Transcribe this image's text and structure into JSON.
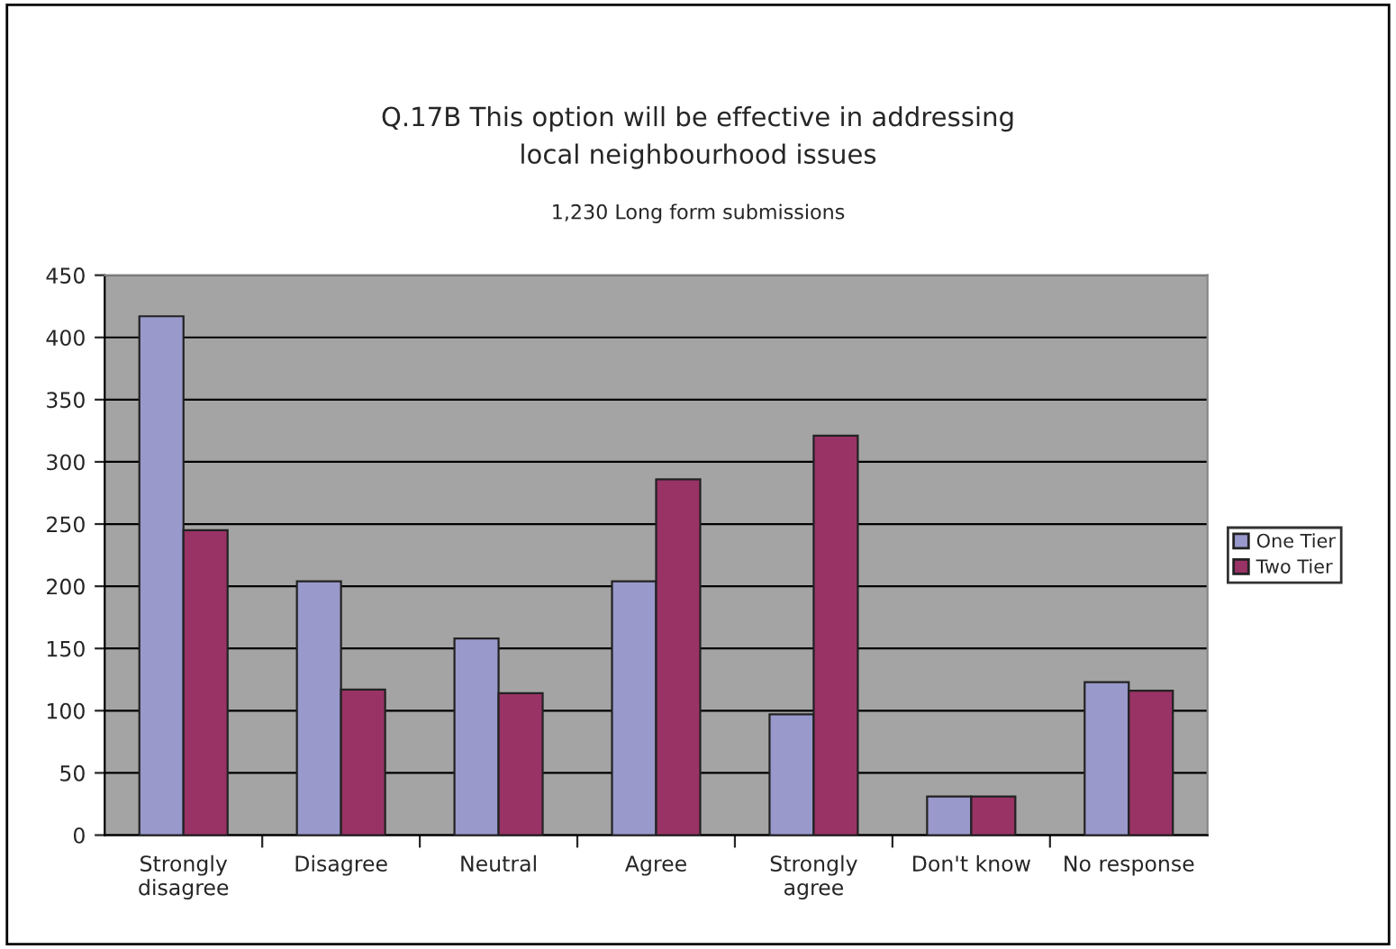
{
  "chart_data": {
    "type": "bar",
    "title": "Q.17B This option will be effective in addressing\nlocal neighbourhood issues",
    "subtitle": "1,230 Long form submissions",
    "categories": [
      "Strongly\ndisagree",
      "Disagree",
      "Neutral",
      "Agree",
      "Strongly\nagree",
      "Don't know",
      "No response"
    ],
    "series": [
      {
        "name": "One Tier",
        "color": "#9999cc",
        "values": [
          417,
          204,
          158,
          204,
          97,
          31,
          123
        ]
      },
      {
        "name": "Two Tier",
        "color": "#993366",
        "values": [
          245,
          117,
          114,
          286,
          321,
          31,
          116
        ]
      }
    ],
    "ylim": [
      0,
      450
    ],
    "yticks": [
      0,
      50,
      100,
      150,
      200,
      250,
      300,
      350,
      400,
      450
    ],
    "grid": "y",
    "legend": "right"
  }
}
